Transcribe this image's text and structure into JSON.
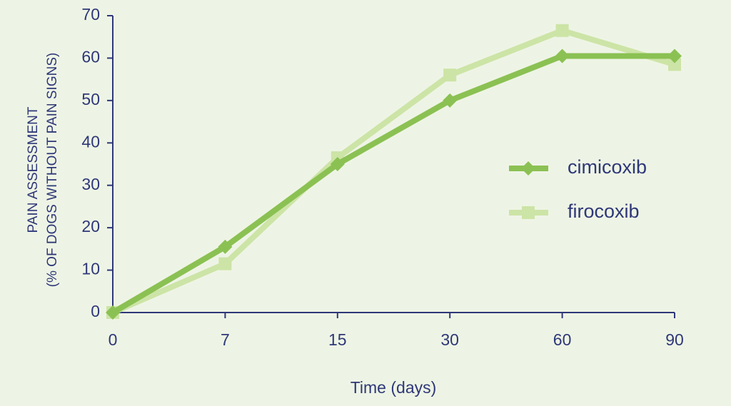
{
  "chart_data": {
    "type": "line",
    "ylabel": [
      "PAIN ASSESSMENT",
      "(% OF DOGS WITHOUT PAIN SIGNS)"
    ],
    "xlabel": "Time (days)",
    "categories": [
      "0",
      "7",
      "15",
      "30",
      "60",
      "90"
    ],
    "series": [
      {
        "name": "cimicoxib",
        "color": "#8bc153",
        "marker": "diamond",
        "values": [
          0,
          15.5,
          35,
          50,
          60.5,
          60.5
        ]
      },
      {
        "name": "firocoxib",
        "color": "#cce4a6",
        "marker": "square",
        "values": [
          0,
          11.5,
          36.5,
          56,
          66.5,
          58.5
        ]
      }
    ],
    "ylim": [
      0,
      70
    ],
    "yticks": [
      0,
      10,
      20,
      30,
      40,
      50,
      60,
      70
    ],
    "axis_color": "#2e3878",
    "background": "#eef4e5"
  }
}
